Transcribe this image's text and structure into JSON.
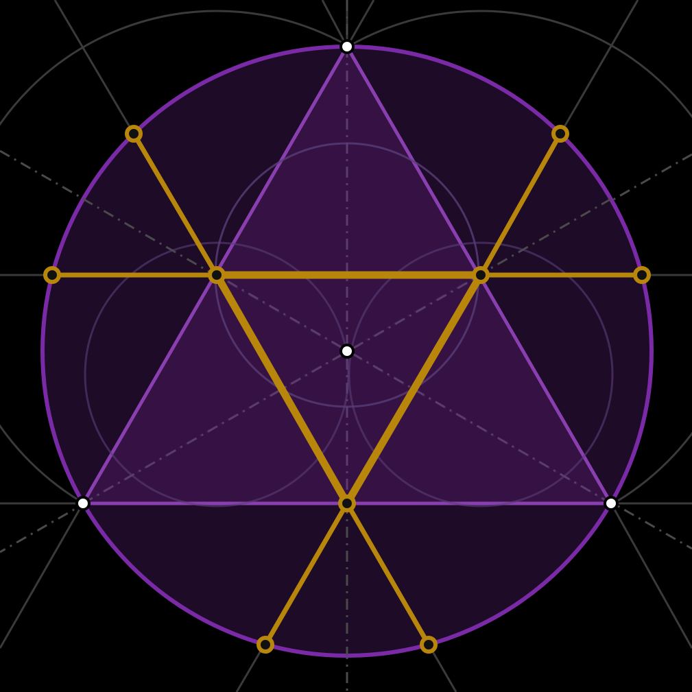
{
  "diagram": {
    "background": "#000000",
    "colors": {
      "guide": "#3a3a3a",
      "guide_dash": "#4a4a4a",
      "inner_guide": "#5a3d78",
      "circle_fill": "#1e0b28",
      "circle_stroke": "#7a2aa6",
      "triangle_fill": "#3a1448",
      "triangle_stroke": "#8a3fb0",
      "gold": "#b8860b",
      "gold_node_ring": "#b8860b",
      "node_center": "#111111",
      "white_node_fill": "#ffffff",
      "white_node_stroke": "#000000"
    },
    "icons": {
      "white_node": "hollow-white-dot",
      "gold_node": "gold-ring-dot"
    }
  }
}
